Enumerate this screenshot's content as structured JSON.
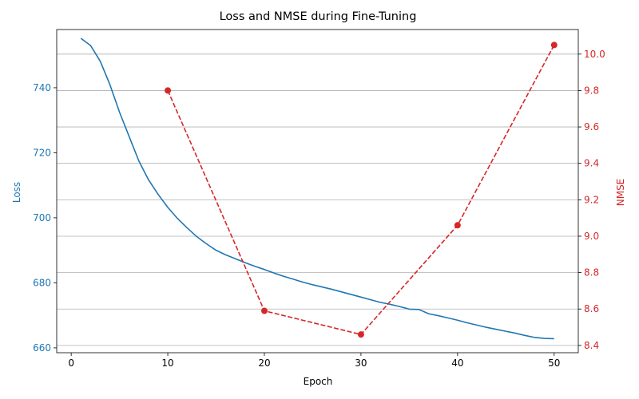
{
  "chart_data": {
    "type": "line",
    "title": "Loss and NMSE during Fine-Tuning",
    "xlabel": "Epoch",
    "xlim": [
      -1.5,
      52.5
    ],
    "xticks": [
      0,
      10,
      20,
      30,
      40,
      50
    ],
    "grid": "horizontal lines from right axis",
    "left_axis": {
      "label": "Loss",
      "color": "#1f77b4",
      "ylim": [
        658.5,
        757.9
      ],
      "ticks": [
        660,
        680,
        700,
        720,
        740
      ]
    },
    "right_axis": {
      "label": "NMSE",
      "color": "#d62728",
      "ylim": [
        8.36,
        10.135
      ],
      "ticks": [
        8.4,
        8.6,
        8.8,
        9.0,
        9.2,
        9.4,
        9.6,
        9.8,
        10.0
      ],
      "tick_labels": [
        "8.4",
        "8.6",
        "8.8",
        "9.0",
        "9.2",
        "9.4",
        "9.6",
        "9.8",
        "10.0"
      ]
    },
    "series": [
      {
        "axis": "left",
        "color": "#1f77b4",
        "style": "solid",
        "x": [
          1,
          2,
          3,
          4,
          5,
          6,
          7,
          8,
          9,
          10,
          11,
          12,
          13,
          14,
          15,
          16,
          17,
          18,
          19,
          20,
          21,
          22,
          23,
          24,
          25,
          26,
          27,
          28,
          29,
          30,
          31,
          32,
          33,
          34,
          35,
          36,
          37,
          38,
          39,
          40,
          41,
          42,
          43,
          44,
          45,
          46,
          47,
          48,
          49,
          50
        ],
        "values": [
          755.2,
          753.0,
          748.2,
          741.0,
          732.5,
          725.0,
          717.5,
          711.7,
          707.2,
          703.2,
          699.8,
          696.9,
          694.2,
          692.0,
          690.0,
          688.6,
          687.4,
          686.2,
          685.1,
          684.1,
          683.0,
          682.0,
          681.1,
          680.2,
          679.4,
          678.7,
          678.0,
          677.2,
          676.4,
          675.6,
          674.8,
          674.0,
          673.4,
          672.7,
          671.9,
          671.8,
          670.5,
          669.9,
          669.2,
          668.5,
          667.7,
          667.0,
          666.3,
          665.7,
          665.1,
          664.5,
          663.8,
          663.2,
          662.9,
          662.8
        ]
      },
      {
        "axis": "right",
        "color": "#d62728",
        "style": "dashed",
        "markers": true,
        "x": [
          10,
          20,
          30,
          40,
          50
        ],
        "values": [
          9.8,
          8.59,
          8.46,
          9.06,
          10.05
        ]
      }
    ]
  }
}
